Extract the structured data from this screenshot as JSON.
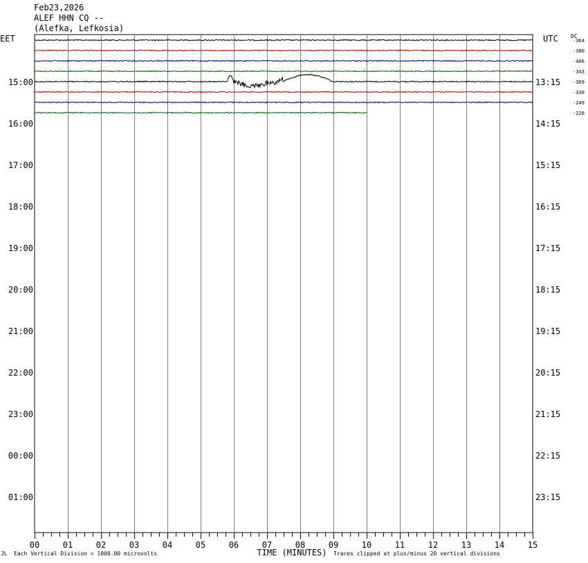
{
  "header": {
    "date": "Feb23,2026",
    "station": "ALEF HHN CQ --",
    "location": "(Alefka, Lefkosia)"
  },
  "left_zone_label": "EET",
  "right_zone_label": "UTC",
  "dc_label": "DC",
  "footer": {
    "scale_note": "Each Vertical Division = 1000.00 microvolts",
    "clip_note": "Traces clipped at plus/minus 20 vertical divisions",
    "corner_mark": "JL"
  },
  "chart_data": {
    "type": "line",
    "xlabel": "TIME (MINUTES)",
    "x_ticks": [
      "00",
      "01",
      "02",
      "03",
      "04",
      "05",
      "06",
      "07",
      "08",
      "09",
      "10",
      "11",
      "12",
      "13",
      "14",
      "15"
    ],
    "xlim": [
      0,
      15
    ],
    "rows_left": [
      "15:00",
      "16:00",
      "17:00",
      "18:00",
      "19:00",
      "20:00",
      "21:00",
      "22:00",
      "23:00",
      "00:00",
      "01:00"
    ],
    "rows_right": [
      "13:15",
      "14:15",
      "15:15",
      "16:15",
      "17:15",
      "18:15",
      "19:15",
      "20:15",
      "21:15",
      "22:15",
      "23:15"
    ],
    "trace_colors": [
      "#000000",
      "#cc0000",
      "#0000aa",
      "#006600"
    ],
    "series": [
      {
        "dc": "-364",
        "color": "#000000",
        "end_minute": 15,
        "event": false
      },
      {
        "dc": "-380",
        "color": "#cc0000",
        "end_minute": 15,
        "event": false
      },
      {
        "dc": "-406",
        "color": "#0000aa",
        "end_minute": 15,
        "event": false
      },
      {
        "dc": "-343",
        "color": "#006600",
        "end_minute": 15,
        "event": false
      },
      {
        "dc": "-309",
        "color": "#000000",
        "end_minute": 15,
        "event": true,
        "event_start_minute": 5.8,
        "event_end_minute": 9.0
      },
      {
        "dc": "-330",
        "color": "#cc0000",
        "end_minute": 15,
        "event": false
      },
      {
        "dc": "-249",
        "color": "#0000aa",
        "end_minute": 15,
        "event": false
      },
      {
        "dc": "-220",
        "color": "#006600",
        "end_minute": 10,
        "event": false
      }
    ]
  }
}
